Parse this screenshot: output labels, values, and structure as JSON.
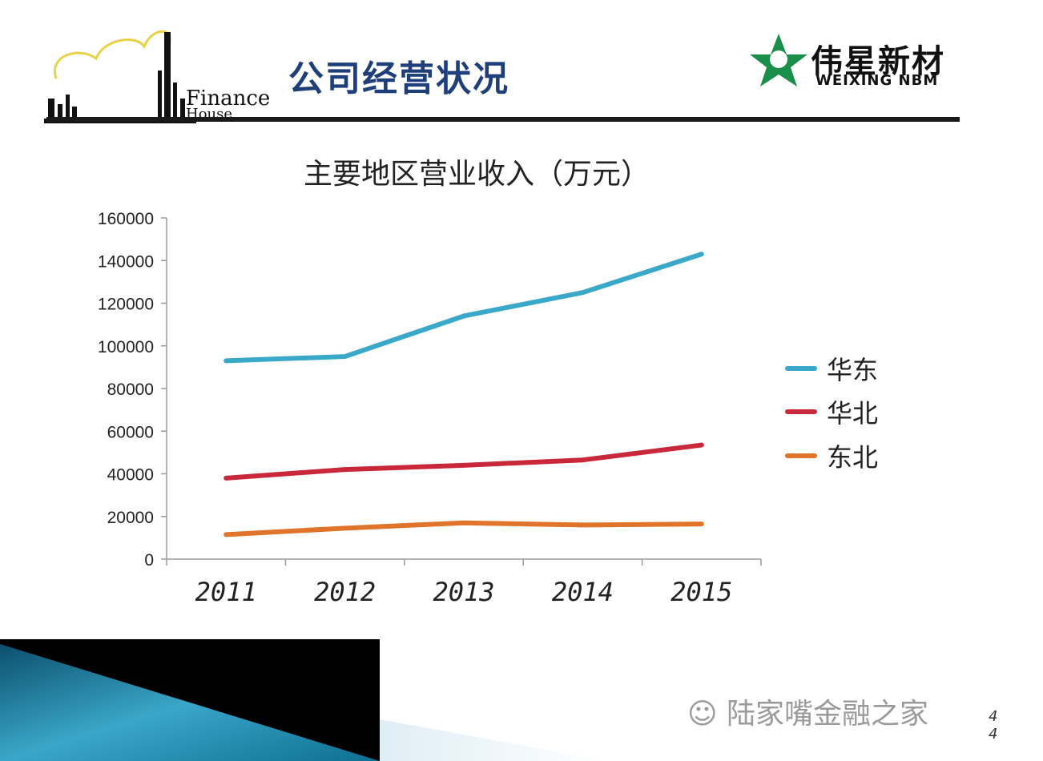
{
  "header": {
    "title": "公司经营状况",
    "left_logo_text": "Finance",
    "left_logo_subtext": "House",
    "right_logo_cn": "伟星新材",
    "right_logo_en": "WEIXING NBM"
  },
  "watermark": "陆家嘴金融之家",
  "page_number": "44",
  "colors": {
    "title": "#1f3f7a",
    "right_logo": "#1a8f4a",
    "accent_blue": "#1e8fb3"
  },
  "chart_data": {
    "type": "line",
    "title": "主要地区营业收入（万元）",
    "categories": [
      "2011",
      "2012",
      "2013",
      "2014",
      "2015"
    ],
    "yticks": [
      "0",
      "20000",
      "40000",
      "60000",
      "80000",
      "100000",
      "120000",
      "140000",
      "160000"
    ],
    "ylim": [
      0,
      160000
    ],
    "grid": false,
    "legend_position": "right",
    "series": [
      {
        "name": "华东",
        "color": "#3aa8c8",
        "values": [
          93000,
          95000,
          114000,
          125000,
          143000
        ]
      },
      {
        "name": "华北",
        "color": "#c8283a",
        "values": [
          38000,
          42000,
          44000,
          46500,
          53500
        ]
      },
      {
        "name": "东北",
        "color": "#e0742a",
        "values": [
          11500,
          14500,
          17000,
          16000,
          16500
        ]
      }
    ]
  }
}
